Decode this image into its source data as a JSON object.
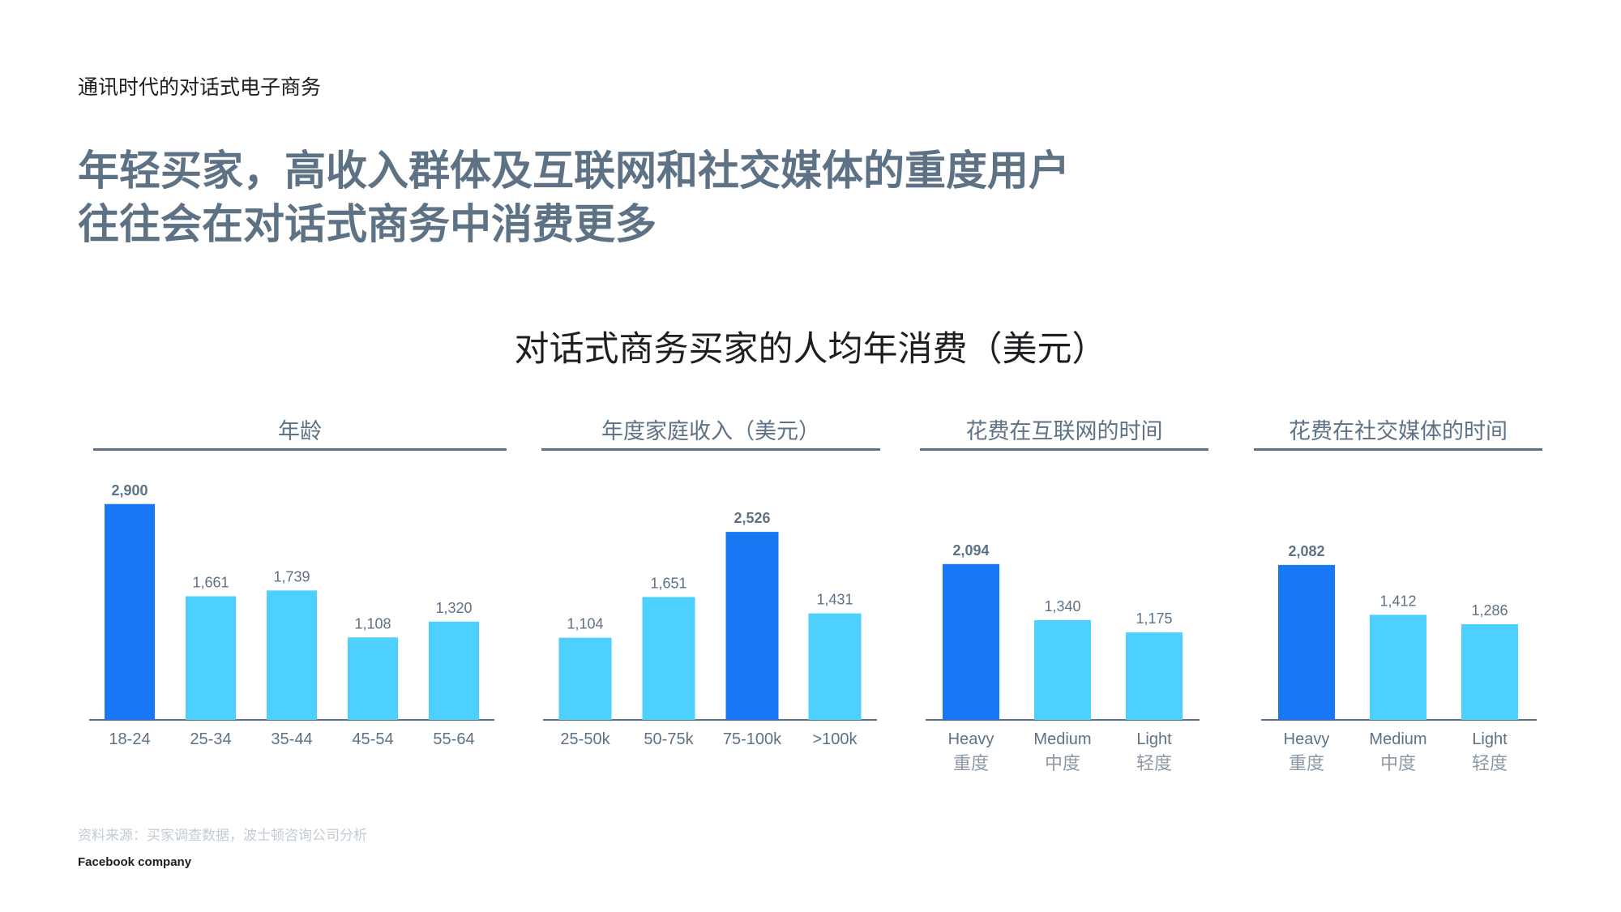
{
  "header": "通讯时代的对话式电子商务",
  "headline": {
    "line1": "年轻买家，高收入群体及互联网和社交媒体的重度用户",
    "line2": "往往会在对话式商务中消费更多"
  },
  "chart_title": "对话式商务买家的人均年消费（美元）",
  "colors": {
    "highlight": "#1877f2",
    "normal": "#4dd0fd",
    "axis": "#5e7285",
    "label": "#5e7285"
  },
  "chart_data": [
    {
      "type": "bar",
      "title": "年龄",
      "categories": [
        "18-24",
        "25-34",
        "35-44",
        "45-54",
        "55-64"
      ],
      "sub_categories": [
        "",
        "",
        "",
        "",
        ""
      ],
      "values": [
        2900,
        1661,
        1739,
        1108,
        1320
      ],
      "labels": [
        "2,900",
        "1,661",
        "1,739",
        "1,108",
        "1,320"
      ],
      "highlight_index": 0
    },
    {
      "type": "bar",
      "title": "年度家庭收入（美元）",
      "categories": [
        "25-50k",
        "50-75k",
        "75-100k",
        ">100k"
      ],
      "sub_categories": [
        "",
        "",
        "",
        ""
      ],
      "values": [
        1104,
        1651,
        2526,
        1431
      ],
      "labels": [
        "1,104",
        "1,651",
        "2,526",
        "1,431"
      ],
      "highlight_index": 2
    },
    {
      "type": "bar",
      "title": "花费在互联网的时间",
      "categories": [
        "Heavy",
        "Medium",
        "Light"
      ],
      "sub_categories": [
        "重度",
        "中度",
        "轻度"
      ],
      "values": [
        2094,
        1340,
        1175
      ],
      "labels": [
        "2,094",
        "1,340",
        "1,175"
      ],
      "highlight_index": 0
    },
    {
      "type": "bar",
      "title": "花费在社交媒体的时间",
      "categories": [
        "Heavy",
        "Medium",
        "Light"
      ],
      "sub_categories": [
        "重度",
        "中度",
        "轻度"
      ],
      "values": [
        2082,
        1412,
        1286
      ],
      "labels": [
        "2,082",
        "1,412",
        "1,286"
      ],
      "highlight_index": 0
    }
  ],
  "footer": {
    "source": "资料来源：买家调查数据，波士顿咨询公司分析",
    "brand": "Facebook company"
  }
}
